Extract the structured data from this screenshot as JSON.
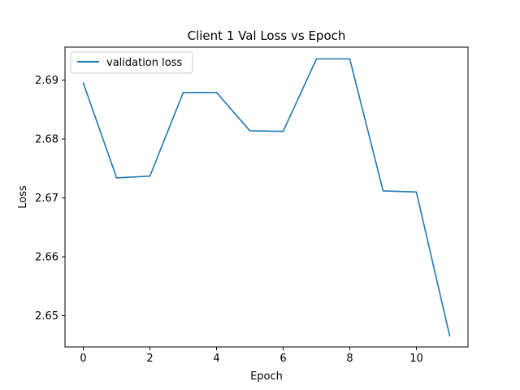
{
  "chart_data": {
    "type": "line",
    "title": "Client 1 Val Loss vs Epoch",
    "xlabel": "Epoch",
    "ylabel": "Loss",
    "xlim": [
      -0.55,
      11.55
    ],
    "ylim": [
      2.6447,
      2.6956
    ],
    "xticks": [
      0,
      2,
      4,
      6,
      8,
      10
    ],
    "yticks": [
      2.65,
      2.66,
      2.67,
      2.68,
      2.69
    ],
    "ytick_labels": [
      "2.65",
      "2.66",
      "2.67",
      "2.68",
      "2.69"
    ],
    "grid": false,
    "legend_position": "upper-left",
    "series": [
      {
        "name": "validation loss",
        "color": "#1f77b4",
        "x": [
          0,
          1,
          2,
          3,
          4,
          5,
          6,
          7,
          8,
          9,
          10,
          11
        ],
        "y": [
          2.6895,
          2.6734,
          2.6737,
          2.6879,
          2.6879,
          2.6814,
          2.6813,
          2.6936,
          2.6936,
          2.6712,
          2.671,
          2.6466
        ]
      }
    ]
  }
}
